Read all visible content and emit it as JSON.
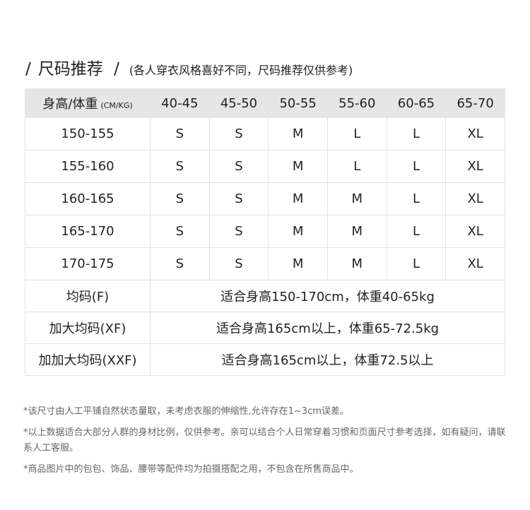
{
  "title": {
    "main": "尺码推荐",
    "sub": "(各人穿衣风格喜好不同，尺码推荐仅供参考)"
  },
  "table": {
    "header_label": "身高/体重",
    "header_unit": "(CM/KG)",
    "weights": [
      "40-45",
      "45-50",
      "50-55",
      "55-60",
      "60-65",
      "65-70"
    ],
    "rows": [
      {
        "height": "150-155",
        "sizes": [
          "S",
          "S",
          "M",
          "L",
          "L",
          "XL"
        ]
      },
      {
        "height": "155-160",
        "sizes": [
          "S",
          "S",
          "M",
          "L",
          "L",
          "XL"
        ]
      },
      {
        "height": "160-165",
        "sizes": [
          "S",
          "S",
          "M",
          "M",
          "L",
          "XL"
        ]
      },
      {
        "height": "165-170",
        "sizes": [
          "S",
          "S",
          "M",
          "M",
          "L",
          "XL"
        ]
      },
      {
        "height": "170-175",
        "sizes": [
          "S",
          "S",
          "M",
          "M",
          "L",
          "XL"
        ]
      }
    ],
    "special": [
      {
        "size": "均码(F)",
        "desc": "适合身高150-170cm，体重40-65kg"
      },
      {
        "size": "加大均码(XF)",
        "desc": "适合身高165cm以上，体重65-72.5kg"
      },
      {
        "size": "加加大均码(XXF)",
        "desc": "适合身高165cm以上，体重72.5以上"
      }
    ]
  },
  "notes": [
    "*该尺寸由人工平铺自然状态量取，未考虑衣服的伸缩性,允许存在1~3cm误差。",
    "*以上数据适合大部分人群的身材比例，仅供参考。亲可以结合个人日常穿着习惯和页面尺寸参考选择，如有疑问，请联系人工客服。",
    "*商品图片中的包包、饰品、腰带等配件均为拍摄搭配之用，不包含在所售商品中。"
  ]
}
